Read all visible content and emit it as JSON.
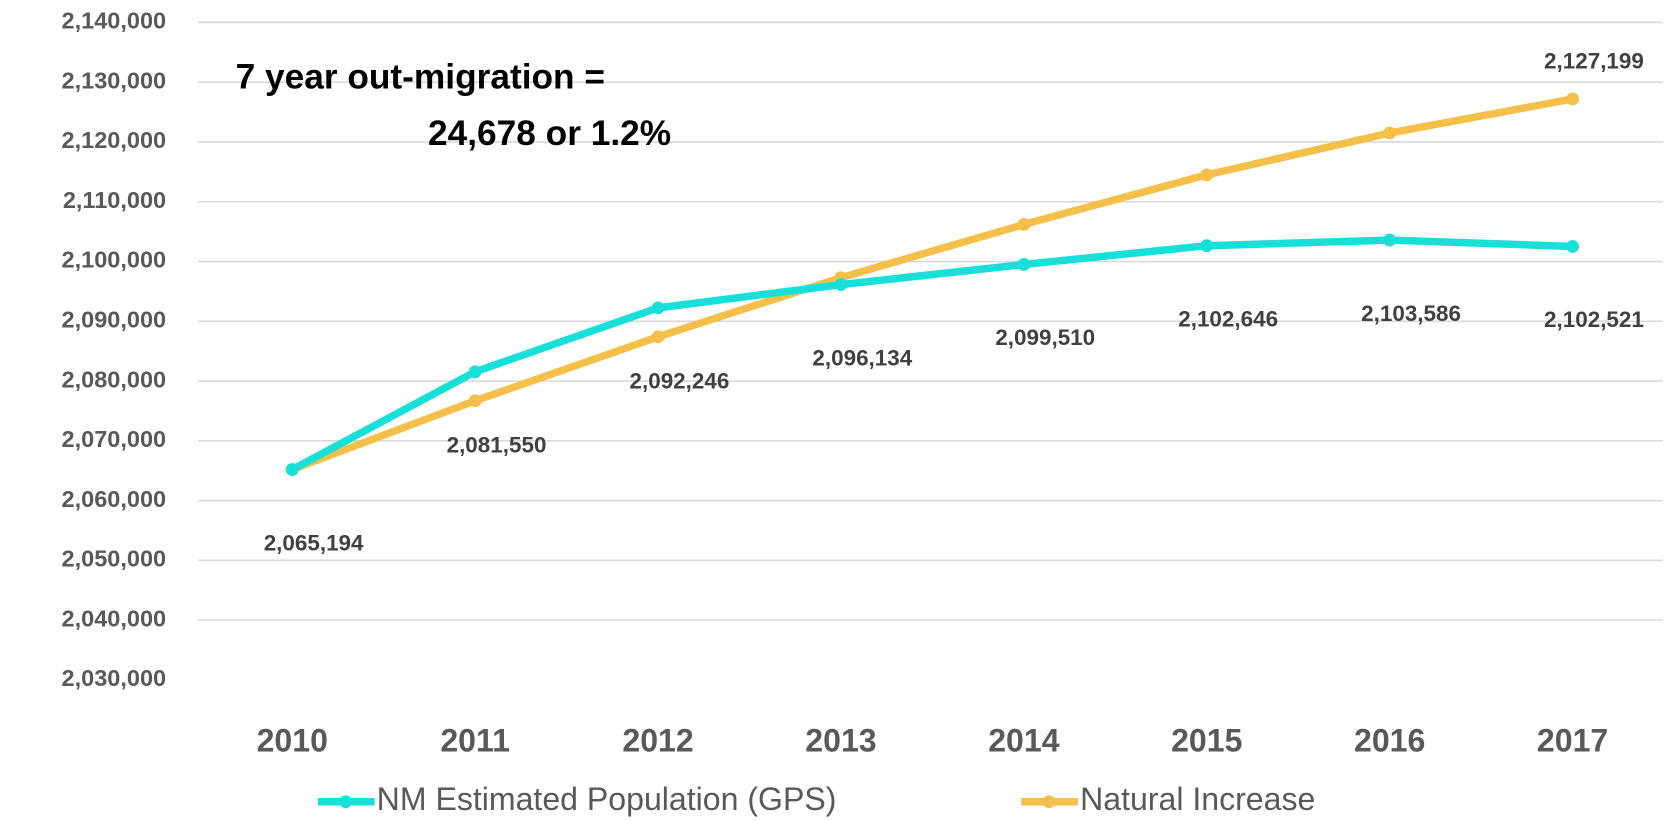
{
  "chart_data": {
    "type": "line",
    "annotations": [
      "7 year out-migration =",
      "24,678 or 1.2%"
    ],
    "categories": [
      "2010",
      "2011",
      "2012",
      "2013",
      "2014",
      "2015",
      "2016",
      "2017"
    ],
    "series": [
      {
        "name": "NM Estimated Population (GPS)",
        "color": "#17e0d8",
        "values": [
          2065194,
          2081550,
          2092246,
          2096134,
          2099510,
          2102646,
          2103586,
          2102521
        ],
        "value_labels": [
          "2,065,194",
          "2,081,550",
          "2,092,246",
          "2,096,134",
          "2,099,510",
          "2,102,646",
          "2,103,586",
          "2,102,521"
        ]
      },
      {
        "name": "Natural Increase",
        "color": "#f5c04a",
        "values": [
          2065194,
          2076700,
          2087400,
          2097300,
          2106200,
          2114500,
          2121500,
          2127199
        ],
        "value_labels": [
          null,
          null,
          null,
          null,
          null,
          null,
          null,
          "2,127,199"
        ]
      }
    ],
    "ylim": [
      2030000,
      2140000
    ],
    "yticks": [
      {
        "value": 2030000,
        "label": "2,030,000"
      },
      {
        "value": 2040000,
        "label": "2,040,000"
      },
      {
        "value": 2050000,
        "label": "2,050,000"
      },
      {
        "value": 2060000,
        "label": "2,060,000"
      },
      {
        "value": 2070000,
        "label": "2,070,000"
      },
      {
        "value": 2080000,
        "label": "2,080,000"
      },
      {
        "value": 2090000,
        "label": "2,090,000"
      },
      {
        "value": 2100000,
        "label": "2,100,000"
      },
      {
        "value": 2110000,
        "label": "2,110,000"
      },
      {
        "value": 2120000,
        "label": "2,120,000"
      },
      {
        "value": 2130000,
        "label": "2,130,000"
      },
      {
        "value": 2140000,
        "label": "2,140,000"
      }
    ],
    "grid": true,
    "legend": "bottom"
  }
}
